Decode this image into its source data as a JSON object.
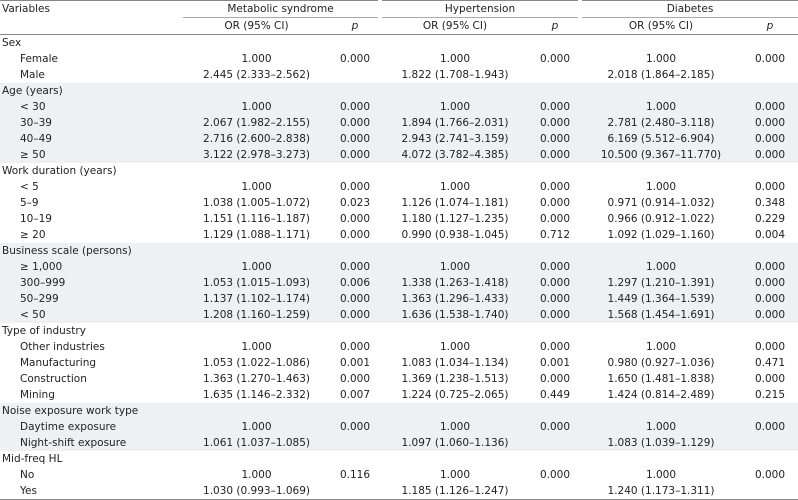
{
  "table": {
    "header": {
      "variables": "Variables",
      "groups": [
        "Metabolic syndrome",
        "Hypertension",
        "Diabetes"
      ],
      "subheaders": [
        "OR (95% CI)",
        "p",
        "OR (95% CI)",
        "p",
        "OR (95% CI)",
        "p"
      ]
    },
    "sections": [
      {
        "label": "Sex",
        "rows": [
          {
            "label": "Female",
            "cells": [
              "1.000",
              "0.000",
              "1.000",
              "0.000",
              "1.000",
              "0.000"
            ]
          },
          {
            "label": "Male",
            "cells": [
              "2.445 (2.333–2.562)",
              null,
              "1.822 (1.708–1.943)",
              null,
              "2.018 (1.864–2.185)",
              null
            ]
          }
        ]
      },
      {
        "label": "Age (years)",
        "rows": [
          {
            "label": "< 30",
            "cells": [
              "1.000",
              "0.000",
              "1.000",
              "0.000",
              "1.000",
              "0.000"
            ]
          },
          {
            "label": "30–39",
            "cells": [
              "2.067 (1.982–2.155)",
              "0.000",
              "1.894 (1.766–2.031)",
              "0.000",
              "2.781 (2.480–3.118)",
              "0.000"
            ]
          },
          {
            "label": "40–49",
            "cells": [
              "2.716 (2.600–2.838)",
              "0.000",
              "2.943 (2.741–3.159)",
              "0.000",
              "6.169 (5.512–6.904)",
              "0.000"
            ]
          },
          {
            "label": "≥ 50",
            "cells": [
              "3.122 (2.978–3.273)",
              "0.000",
              "4.072 (3.782–4.385)",
              "0.000",
              "10.500 (9.367–11.770)",
              "0.000"
            ]
          }
        ]
      },
      {
        "label": "Work duration (years)",
        "rows": [
          {
            "label": "< 5",
            "cells": [
              "1.000",
              "0.000",
              "1.000",
              "0.000",
              "1.000",
              "0.000"
            ]
          },
          {
            "label": "5–9",
            "cells": [
              "1.038 (1.005–1.072)",
              "0.023",
              "1.126 (1.074–1.181)",
              "0.000",
              "0.971 (0.914–1.032)",
              "0.348"
            ]
          },
          {
            "label": "10–19",
            "cells": [
              "1.151 (1.116–1.187)",
              "0.000",
              "1.180 (1.127–1.235)",
              "0.000",
              "0.966 (0.912–1.022)",
              "0.229"
            ]
          },
          {
            "label": "≥ 20",
            "cells": [
              "1.129 (1.088–1.171)",
              "0.000",
              "0.990 (0.938–1.045)",
              "0.712",
              "1.092 (1.029–1.160)",
              "0.004"
            ]
          }
        ]
      },
      {
        "label": "Business scale (persons)",
        "rows": [
          {
            "label": "≥ 1,000",
            "cells": [
              "1.000",
              "0.000",
              "1.000",
              "0.000",
              "1.000",
              "0.000"
            ]
          },
          {
            "label": "300–999",
            "cells": [
              "1.053 (1.015–1.093)",
              "0.006",
              "1.338 (1.263–1.418)",
              "0.000",
              "1.297 (1.210–1.391)",
              "0.000"
            ]
          },
          {
            "label": "50–299",
            "cells": [
              "1.137 (1.102–1.174)",
              "0.000",
              "1.363 (1.296–1.433)",
              "0.000",
              "1.449 (1.364–1.539)",
              "0.000"
            ]
          },
          {
            "label": "< 50",
            "cells": [
              "1.208 (1.160–1.259)",
              "0.000",
              "1.636 (1.538–1.740)",
              "0.000",
              "1.568 (1.454–1.691)",
              "0.000"
            ]
          }
        ]
      },
      {
        "label": "Type of industry",
        "rows": [
          {
            "label": "Other industries",
            "cells": [
              "1.000",
              "0.000",
              "1.000",
              "0.000",
              "1.000",
              "0.000"
            ]
          },
          {
            "label": "Manufacturing",
            "cells": [
              "1.053 (1.022–1.086)",
              "0.001",
              "1.083 (1.034–1.134)",
              "0.001",
              "0.980 (0.927–1.036)",
              "0.471"
            ]
          },
          {
            "label": "Construction",
            "cells": [
              "1.363 (1.270–1.463)",
              "0.000",
              "1.369 (1.238–1.513)",
              "0.000",
              "1.650 (1.481–1.838)",
              "0.000"
            ]
          },
          {
            "label": "Mining",
            "cells": [
              "1.635 (1.146–2.332)",
              "0.007",
              "1.224 (0.725–2.065)",
              "0.449",
              "1.424 (0.814–2.489)",
              "0.215"
            ]
          }
        ]
      },
      {
        "label": "Noise exposure work type",
        "rows": [
          {
            "label": "Daytime exposure",
            "cells": [
              "1.000",
              "0.000",
              "1.000",
              "0.000",
              "1.000",
              "0.000"
            ]
          },
          {
            "label": "Night-shift exposure",
            "cells": [
              "1.061 (1.037–1.085)",
              null,
              "1.097 (1.060–1.136)",
              null,
              "1.083 (1.039–1.129)",
              null
            ]
          }
        ]
      },
      {
        "label": "Mid-freq HL",
        "rows": [
          {
            "label": "No",
            "cells": [
              "1.000",
              "0.116",
              "1.000",
              "0.000",
              "1.000",
              "0.000"
            ]
          },
          {
            "label": "Yes",
            "cells": [
              "1.030 (0.993–1.069)",
              null,
              "1.185 (1.126–1.247)",
              null,
              "1.240 (1.173–1.311)",
              null
            ]
          }
        ]
      }
    ]
  }
}
